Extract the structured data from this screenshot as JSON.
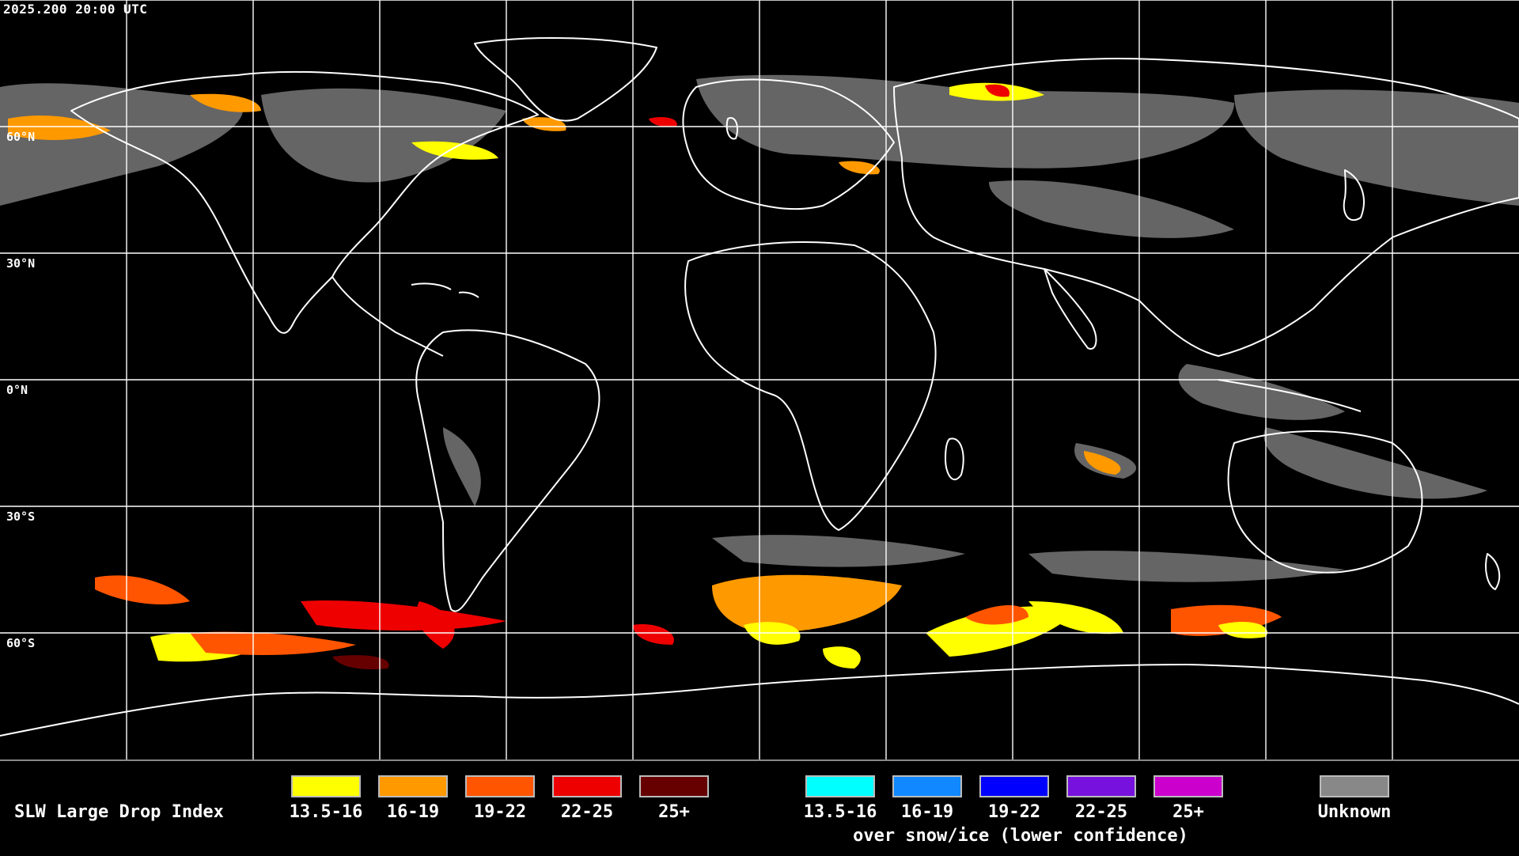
{
  "timestamp": "2025.200 20:00 UTC",
  "latitude_labels": [
    "60°N",
    "30°N",
    "0°N",
    "30°S",
    "60°S"
  ],
  "legend": {
    "title": "SLW Large Drop Index",
    "standard": [
      {
        "label": "13.5-16",
        "color": "#ffff00"
      },
      {
        "label": "16-19",
        "color": "#ff9900"
      },
      {
        "label": "19-22",
        "color": "#ff5500"
      },
      {
        "label": "22-25",
        "color": "#ee0000"
      },
      {
        "label": "25+",
        "color": "#660000"
      }
    ],
    "snow_ice": [
      {
        "label": "13.5-16",
        "color": "#00ffff"
      },
      {
        "label": "16-19",
        "color": "#1188ff"
      },
      {
        "label": "19-22",
        "color": "#0000ff"
      },
      {
        "label": "22-25",
        "color": "#7711dd"
      },
      {
        "label": "25+",
        "color": "#cc00cc"
      }
    ],
    "snow_ice_caption": "over snow/ice (lower confidence)",
    "unknown": {
      "label": "Unknown",
      "color": "#888888"
    }
  }
}
